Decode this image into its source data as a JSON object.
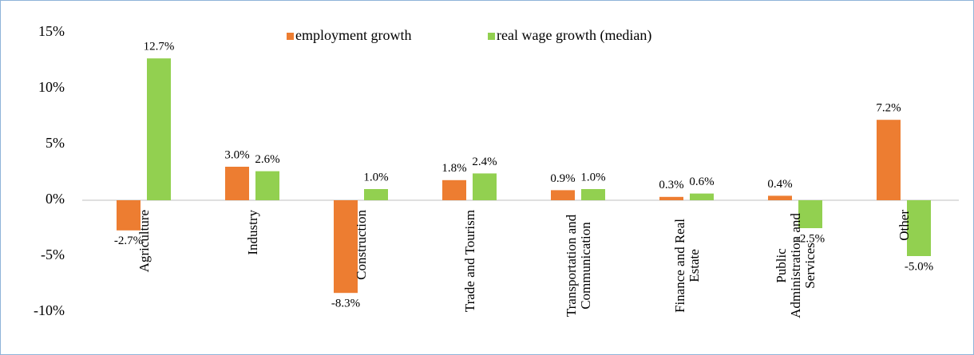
{
  "chart_data": {
    "type": "bar",
    "categories": [
      "Agriculture",
      "Industry",
      "Construction",
      "Trade and Tourism",
      "Transportation and Communication",
      "Finance and Real Estate",
      "Public Administration and Services",
      "Other"
    ],
    "series": [
      {
        "name": "employment growth",
        "color": "#ED7D31",
        "values": [
          -2.7,
          3.0,
          -8.3,
          1.8,
          0.9,
          0.3,
          0.4,
          7.2
        ],
        "value_labels": [
          "-2.7%",
          "3.0%",
          "-8.3%",
          "1.8%",
          "0.9%",
          "0.3%",
          "0.4%",
          "7.2%"
        ]
      },
      {
        "name": "real wage growth (median)",
        "color": "#92D050",
        "values": [
          12.7,
          2.6,
          1.0,
          2.4,
          1.0,
          0.6,
          -2.5,
          -5.0
        ],
        "value_labels": [
          "12.7%",
          "2.6%",
          "1.0%",
          "2.4%",
          "1.0%",
          "0.6%",
          "-2.5%",
          "-5.0%"
        ]
      }
    ],
    "ylim": [
      -14,
      15
    ],
    "yticks": [
      {
        "value": -10,
        "label": "-10%"
      },
      {
        "value": -5,
        "label": "-5%"
      },
      {
        "value": 0,
        "label": "0%"
      },
      {
        "value": 5,
        "label": "5%"
      },
      {
        "value": 10,
        "label": "10%"
      },
      {
        "value": 15,
        "label": "15%"
      }
    ],
    "legend": "top"
  }
}
